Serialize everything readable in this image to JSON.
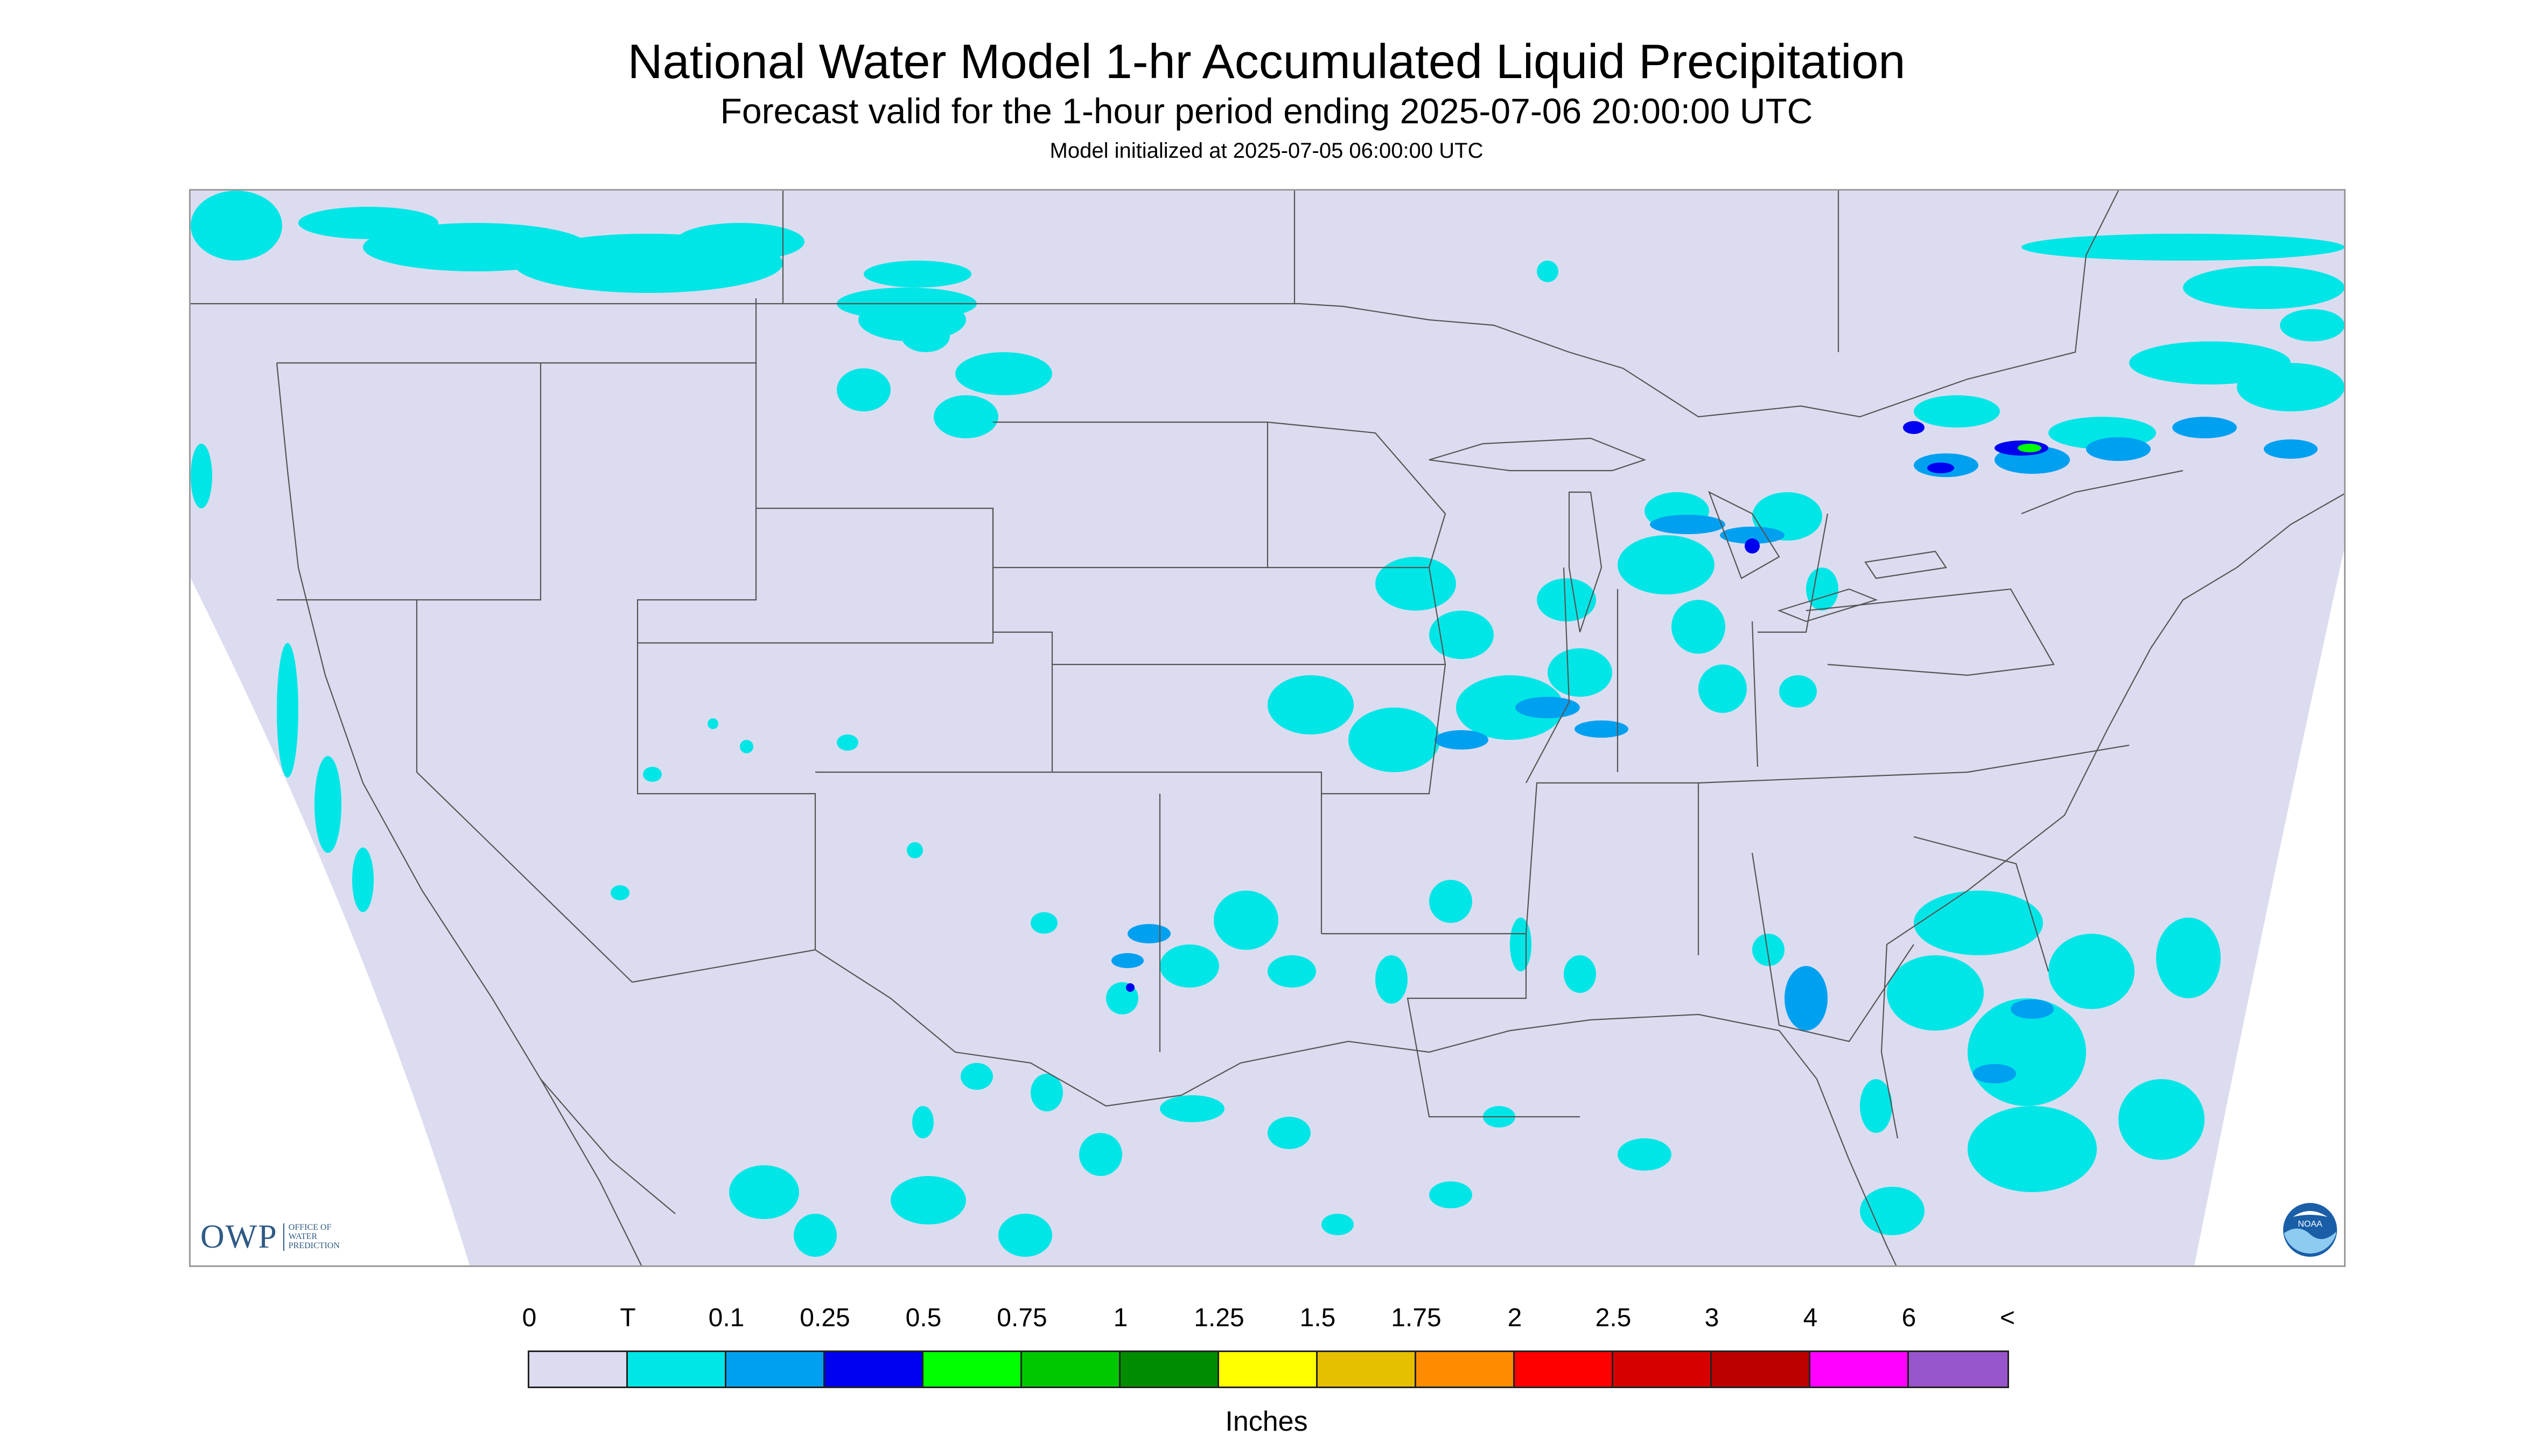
{
  "header": {
    "title": "National Water Model 1-hr Accumulated Liquid Precipitation",
    "subtitle": "Forecast valid for the 1-hour period ending 2025-07-06 20:00:00 UTC",
    "init": "Model initialized at 2025-07-05 06:00:00 UTC"
  },
  "branding": {
    "owp_mark": "OWP",
    "owp_text": [
      "OFFICE OF",
      "WATER",
      "PREDICTION"
    ],
    "noaa_text": "NOAA"
  },
  "legend": {
    "labels": [
      "0",
      "T",
      "0.1",
      "0.25",
      "0.5",
      "0.75",
      "1",
      "1.25",
      "1.5",
      "1.75",
      "2",
      "2.5",
      "3",
      "4",
      "6",
      "<"
    ],
    "colors": [
      "#dcdcf0",
      "#00e6e6",
      "#00a0f0",
      "#0000f0",
      "#00ff00",
      "#00c800",
      "#008c00",
      "#ffff00",
      "#e6bf00",
      "#ff8c00",
      "#ff0000",
      "#d70000",
      "#bc0000",
      "#ff00ff",
      "#9955cc"
    ],
    "units": "Inches"
  },
  "map": {
    "domain_color": "#dcdcf0",
    "trace_color": "#00e6e6",
    "light_color": "#00a0f0",
    "moderate_color": "#0000f0",
    "heavy_color": "#00ff00"
  }
}
